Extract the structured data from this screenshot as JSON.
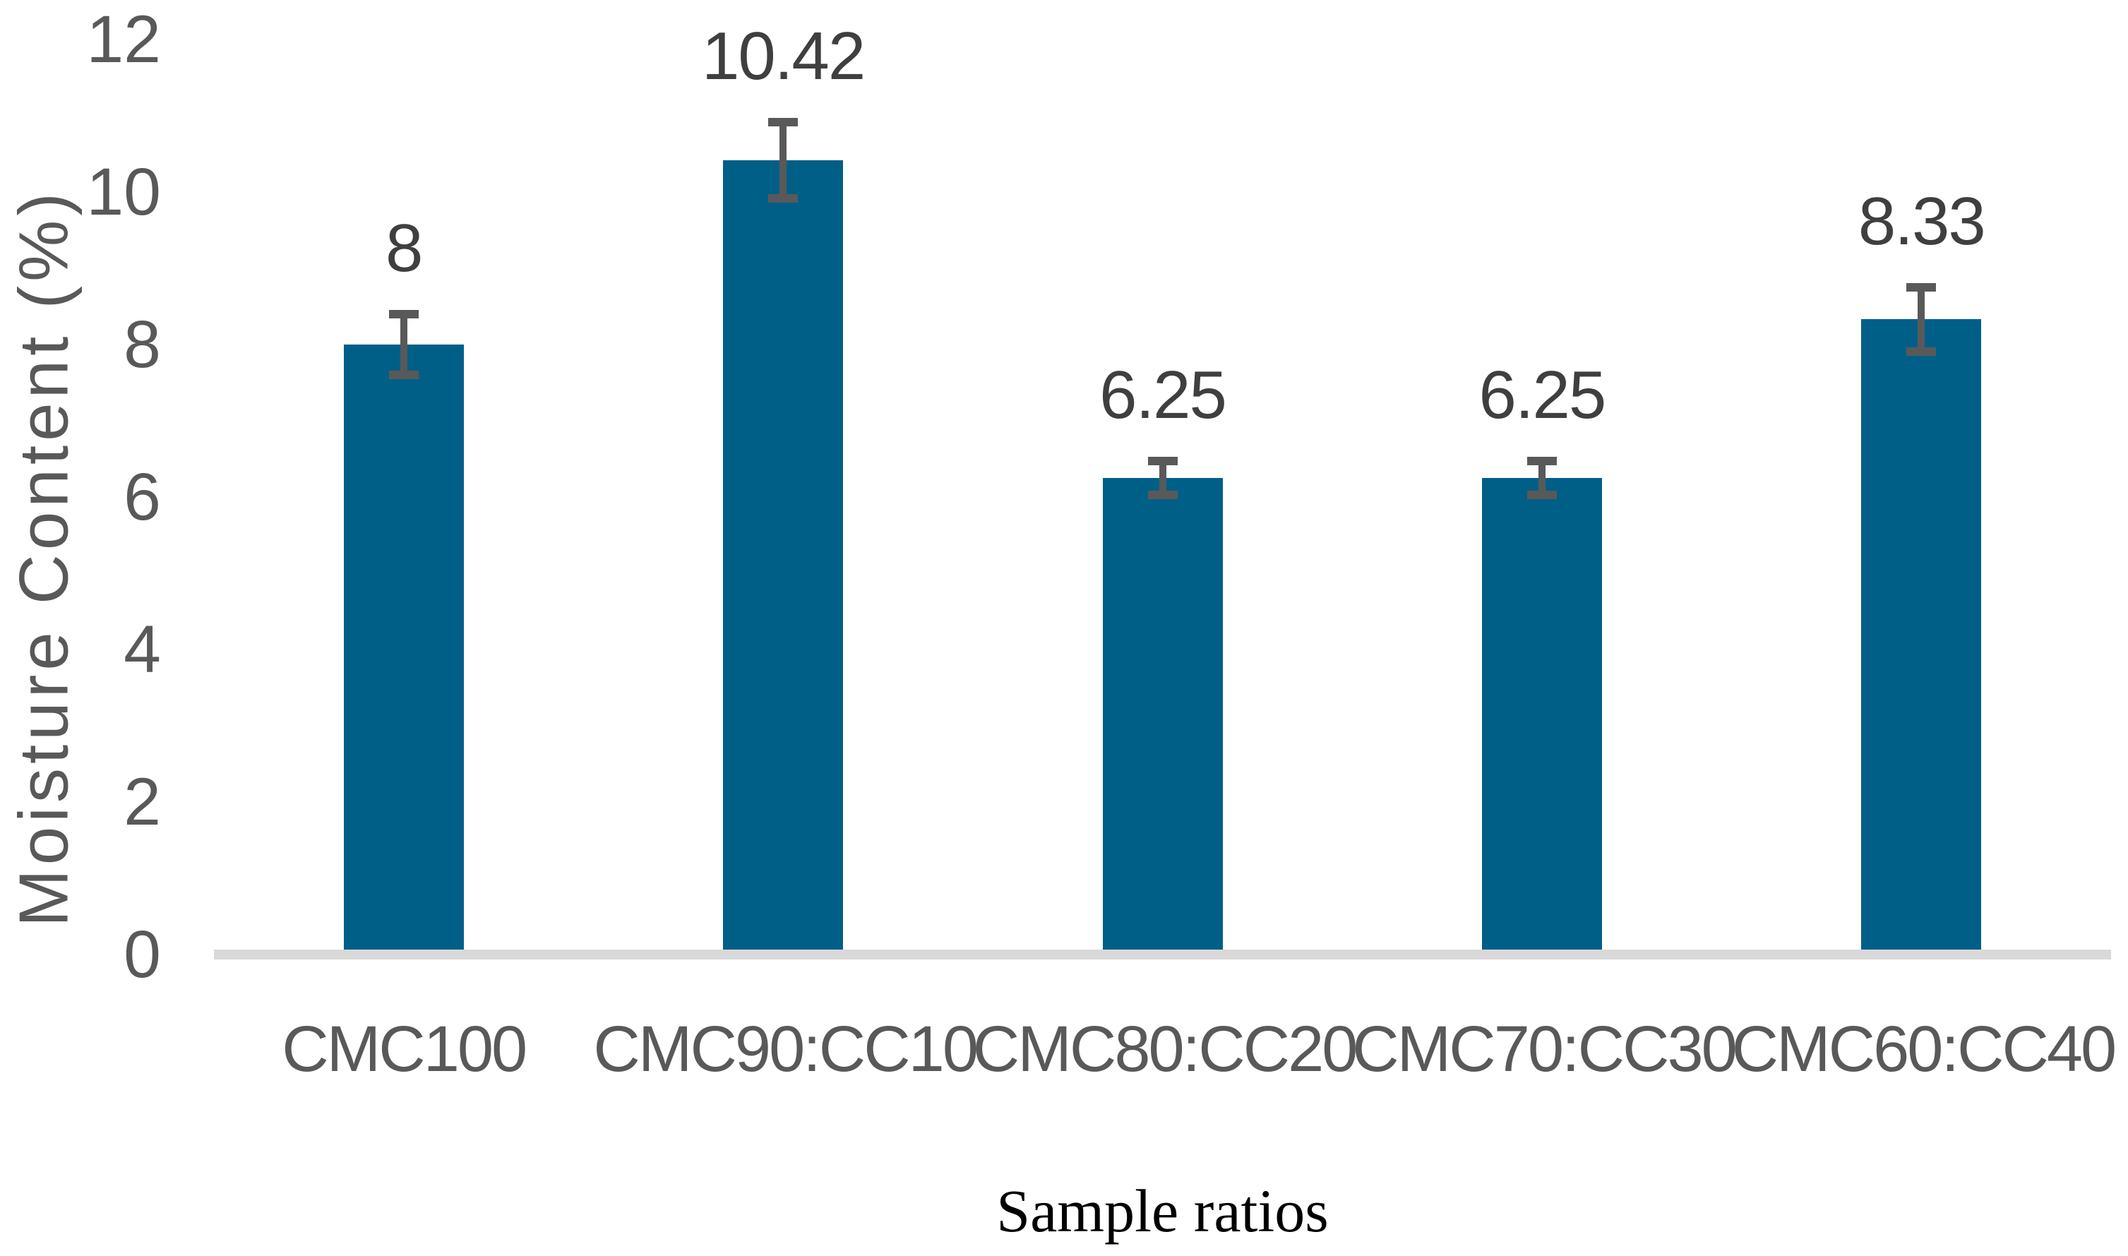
{
  "chart_data": {
    "type": "bar",
    "title": "",
    "categories": [
      "CMC100",
      "CMC90:CC10",
      "CMC80:CC20",
      "CMC70:CC30",
      "CMC60:CC40"
    ],
    "values": [
      8,
      10.42,
      6.25,
      6.25,
      8.33
    ],
    "data_labels": [
      "8",
      "10.42",
      "6.25",
      "6.25",
      "8.33"
    ],
    "error_bars": [
      0.4,
      0.5,
      0.22,
      0.22,
      0.42
    ],
    "xlabel": "Sample ratios",
    "ylabel": "Moisture Content (%)",
    "ylim": [
      0,
      12
    ],
    "yticks": [
      0,
      2,
      4,
      6,
      8,
      10,
      12
    ],
    "grid": false,
    "legend": "none",
    "colors": {
      "bar": "#005F87",
      "error_bar": "#595959",
      "data_label": "#3F3F3F",
      "axis_text": "#595959",
      "baseline": "#D9D9D9",
      "x_axis_title": "#000000"
    }
  }
}
